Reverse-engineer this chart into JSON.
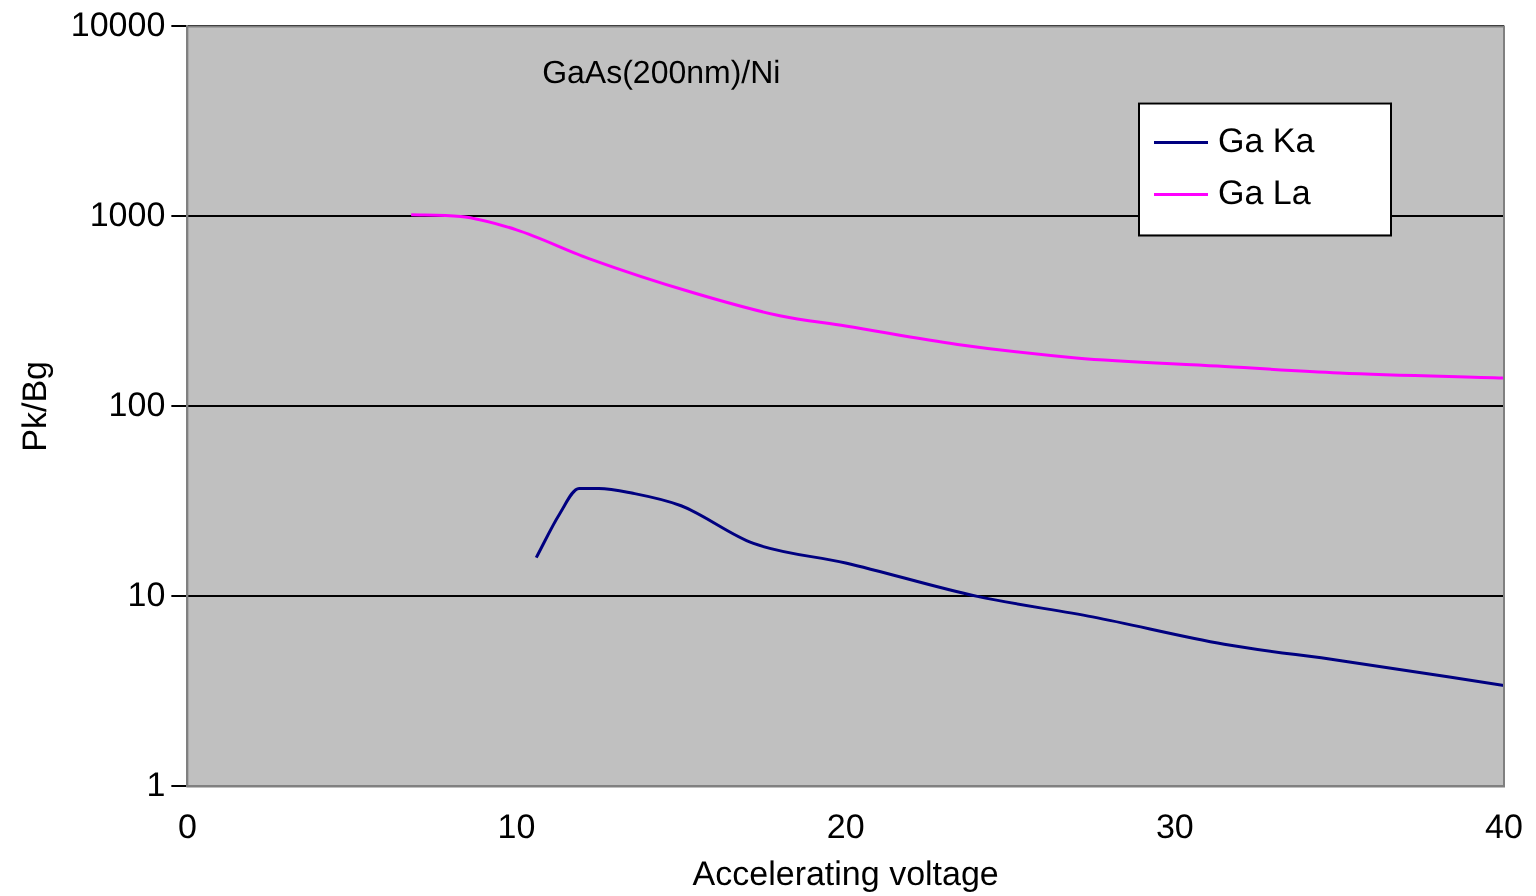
{
  "chart_data": {
    "type": "line",
    "title": "GaAs(200nm)/Ni",
    "xlabel": "Accelerating voltage",
    "ylabel": "Pk/Bg",
    "xlim": [
      0,
      40
    ],
    "xticks": [
      0,
      10,
      20,
      30,
      40
    ],
    "ylim": [
      1,
      10000
    ],
    "yticks": [
      1,
      10,
      100,
      1000,
      10000
    ],
    "log": "y",
    "grid": "y",
    "legend": "top right",
    "marker": "none",
    "series": [
      {
        "name": "Ga Ka",
        "color": "#000080",
        "x": [
          10.6,
          11.3,
          11.9,
          12.5,
          13.5,
          15,
          17.2,
          20,
          24,
          27.5,
          31.5,
          35,
          40
        ],
        "values": [
          16,
          27,
          37,
          37,
          35,
          30,
          19,
          15,
          10,
          7.8,
          5.6,
          4.6,
          3.4
        ]
      },
      {
        "name": "Ga La",
        "color": "#ff00ff",
        "x": [
          6.8,
          8.3,
          10,
          12.2,
          15.4,
          18,
          20,
          23.4,
          27,
          31.3,
          35,
          40
        ],
        "values": [
          1020,
          1000,
          850,
          600,
          395,
          300,
          265,
          212,
          180,
          163,
          150,
          141
        ]
      }
    ]
  }
}
